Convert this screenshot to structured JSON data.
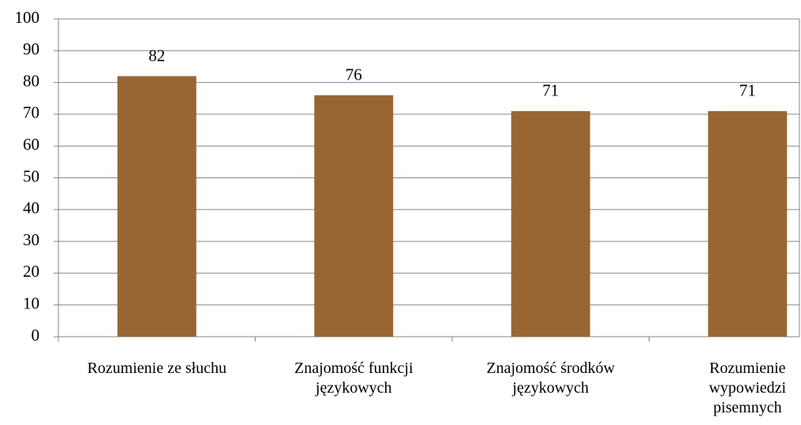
{
  "chart_data": {
    "type": "bar",
    "categories": [
      "Rozumienie ze słuchu",
      "Znajomość funkcji językowych",
      "Znajomość środków językowych",
      "Rozumienie wypowiedzi pisemnych"
    ],
    "values": [
      82,
      76,
      71,
      71
    ],
    "color": "#996633",
    "ylim": [
      0,
      100
    ],
    "yticks": [
      0,
      10,
      20,
      30,
      40,
      50,
      60,
      70,
      80,
      90,
      100
    ],
    "grid": true
  }
}
